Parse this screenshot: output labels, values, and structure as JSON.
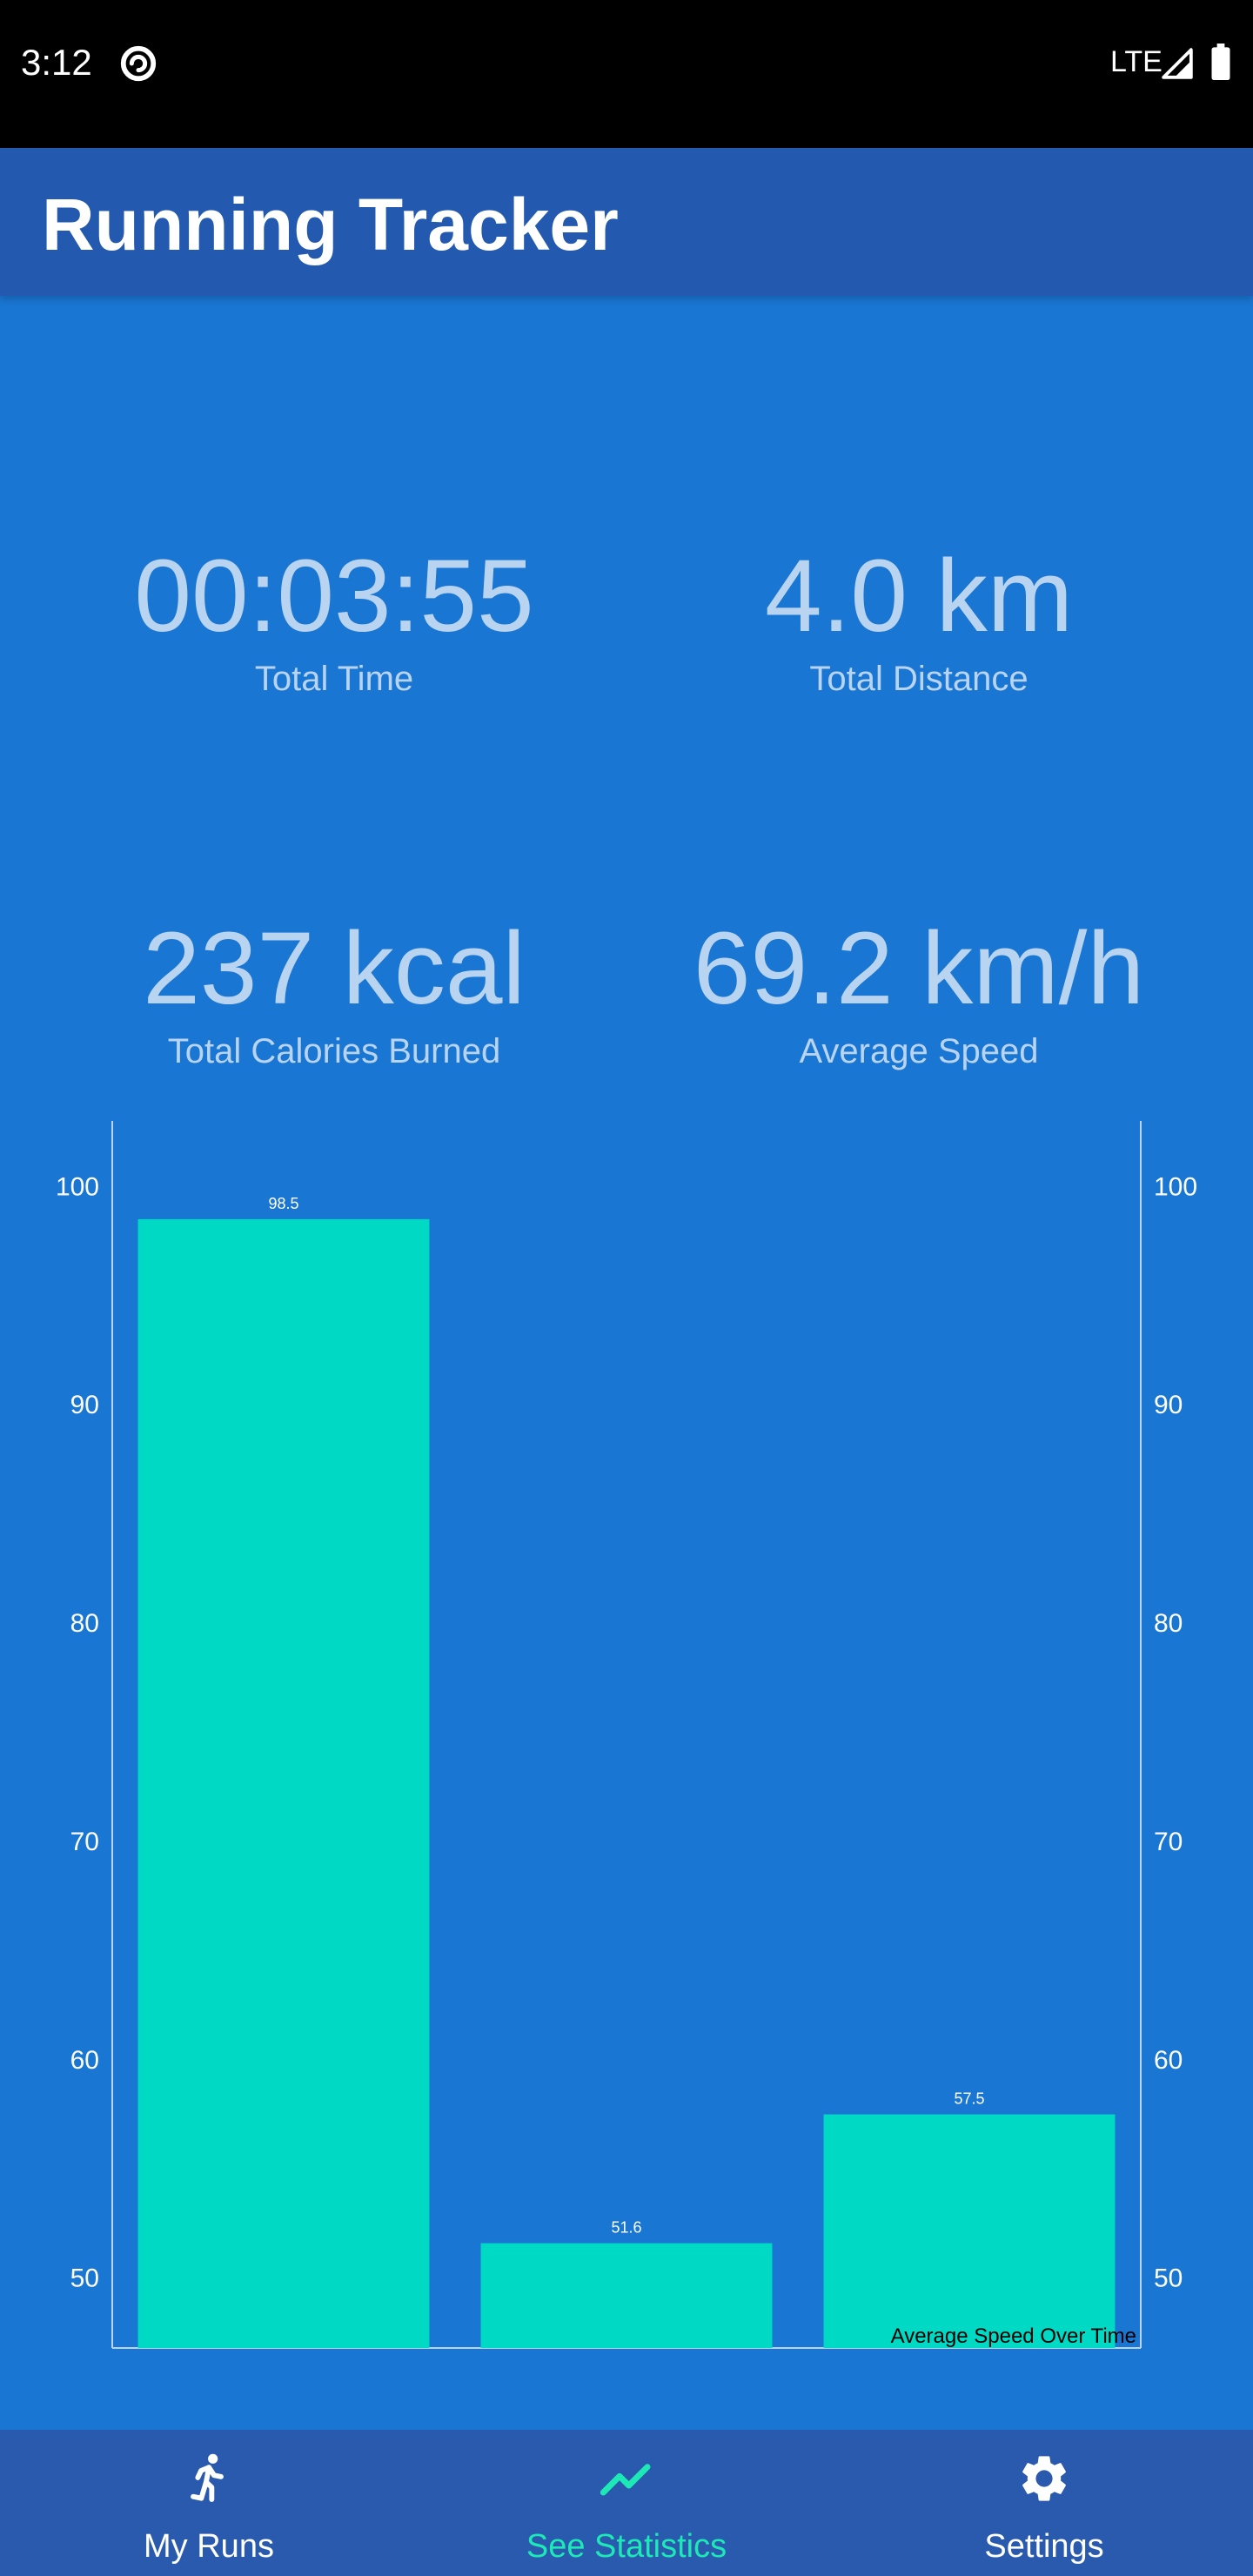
{
  "status_bar": {
    "time": "3:12",
    "network": "LTE",
    "icons": [
      "sync-icon",
      "signal-icon",
      "battery-icon"
    ]
  },
  "app_bar": {
    "title": "Running Tracker"
  },
  "stats": {
    "total_time": {
      "value": "00:03:55",
      "label": "Total Time"
    },
    "total_distance": {
      "value": "4.0 km",
      "label": "Total Distance"
    },
    "total_calories": {
      "value": "237 kcal",
      "label": "Total Calories Burned"
    },
    "average_speed": {
      "value": "69.2 km/h",
      "label": "Average Speed"
    }
  },
  "chart_data": {
    "type": "bar",
    "title": "",
    "description_label": "Average Speed Over Time",
    "values": [
      98.5,
      51.6,
      57.5
    ],
    "value_labels": [
      "98.5",
      "51.6",
      "57.5"
    ],
    "ylim": [
      46.8,
      103.0
    ],
    "y_ticks": [
      "50",
      "60",
      "70",
      "80",
      "90",
      "100"
    ],
    "dual_y_axis": true,
    "grid": false,
    "bar_color": "#00d9c4"
  },
  "bottom_nav": {
    "items": [
      {
        "label": "My Runs",
        "icon": "running-person-icon",
        "active": false
      },
      {
        "label": "See Statistics",
        "icon": "trending-up-icon",
        "active": true
      },
      {
        "label": "Settings",
        "icon": "gear-icon",
        "active": false
      }
    ],
    "active_color": "#1de9b6",
    "inactive_color": "#ffffff"
  },
  "colors": {
    "background": "#1976d2",
    "app_bar": "#235aaf",
    "stat_text": "#b9d4f1",
    "bottom_nav": "#2a5aad"
  }
}
